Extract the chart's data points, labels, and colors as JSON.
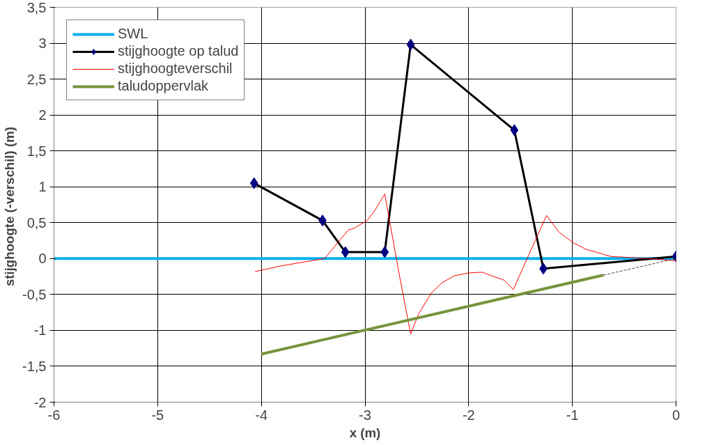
{
  "chart_data": {
    "type": "line",
    "xlabel": "x (m)",
    "ylabel": "stijghoogte (-verschil)  (m)",
    "xlim": [
      -6,
      0
    ],
    "xticks": [
      -6,
      -5,
      -4,
      -3,
      -2,
      -1,
      0
    ],
    "ylim": [
      -2,
      3.5
    ],
    "yticks": [
      {
        "value": -2,
        "label": "-2"
      },
      {
        "value": -1.5,
        "label": "-1,5"
      },
      {
        "value": -1,
        "label": "-1"
      },
      {
        "value": -0.5,
        "label": "-0,5"
      },
      {
        "value": 0,
        "label": "0"
      },
      {
        "value": 0.5,
        "label": "0,5"
      },
      {
        "value": 1,
        "label": "1"
      },
      {
        "value": 1.5,
        "label": "1,5"
      },
      {
        "value": 2,
        "label": "2"
      },
      {
        "value": 2.5,
        "label": "2,5"
      },
      {
        "value": 3,
        "label": "3"
      },
      {
        "value": 3.5,
        "label": "3,5"
      }
    ],
    "grid": true,
    "legend": "top left",
    "series": [
      {
        "name": "SWL",
        "color": "#00b0f0",
        "x": [
          -6,
          0
        ],
        "values": [
          0,
          0
        ]
      },
      {
        "name": "stijghoogte op talud",
        "color": "#000000",
        "marker": "diamond",
        "colors": [
          "#000080",
          "#000080",
          "#000080",
          "#000080",
          "#000080",
          "#000080",
          "#000080",
          "#000080"
        ],
        "x": [
          -4.07,
          -3.41,
          -3.19,
          -2.81,
          -2.56,
          -1.56,
          -1.28,
          0
        ],
        "values": [
          1.05,
          0.53,
          0.09,
          0.09,
          2.98,
          1.79,
          -0.14,
          0.03
        ]
      },
      {
        "name": "stijghoogteverschil",
        "color": "#ff0000",
        "x": [
          -4.06,
          -3.8,
          -3.6,
          -3.39,
          -3.16,
          -3.11,
          -2.98,
          -2.91,
          -2.81,
          -2.67,
          -2.56,
          -2.48,
          -2.36,
          -2.26,
          -2.14,
          -2.0,
          -1.87,
          -1.66,
          -1.57,
          -1.25,
          -1.13,
          -0.99,
          -0.87,
          -0.63,
          -0.26,
          0
        ],
        "values": [
          -0.18,
          -0.1,
          -0.05,
          0.0,
          0.4,
          0.42,
          0.53,
          0.66,
          0.9,
          -0.22,
          -1.05,
          -0.76,
          -0.48,
          -0.34,
          -0.24,
          -0.2,
          -0.19,
          -0.3,
          -0.43,
          0.6,
          0.37,
          0.22,
          0.13,
          0.03,
          0.0,
          -0.03
        ]
      },
      {
        "name": "taludoppervlak",
        "color": "#77933c",
        "x": [
          -4,
          -0.7
        ],
        "values": [
          -1.33,
          -0.23
        ]
      },
      {
        "color": "#404040",
        "line_style": "dashed",
        "x": [
          -0.7,
          0
        ],
        "values": [
          -0.23,
          0
        ]
      }
    ]
  }
}
